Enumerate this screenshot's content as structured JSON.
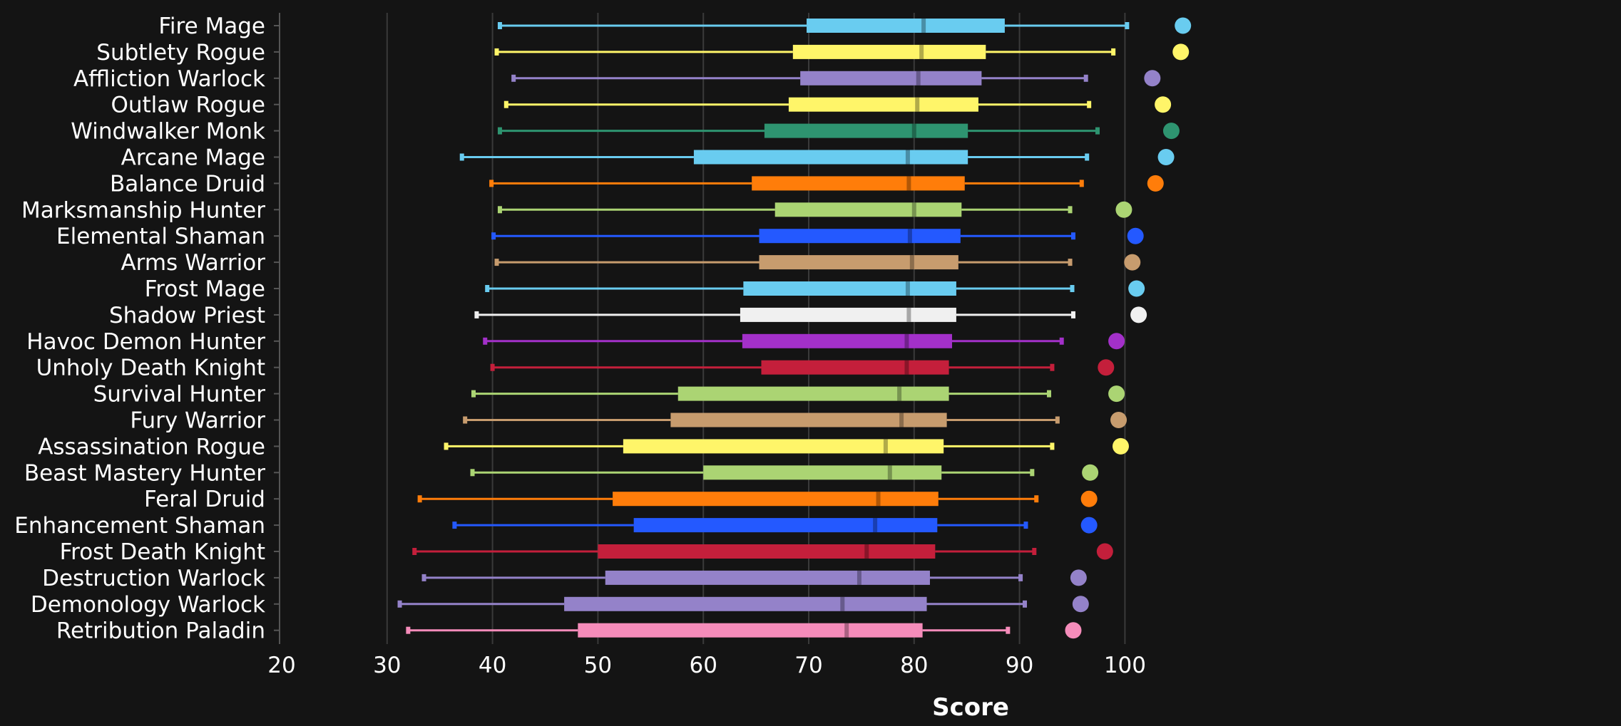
{
  "chart_data": {
    "type": "box",
    "xlabel": "Score",
    "xlim": [
      20,
      106
    ],
    "xticks": [
      20,
      30,
      40,
      50,
      60,
      70,
      80,
      90,
      100
    ],
    "grid": true,
    "orientation": "horizontal",
    "categories": [
      {
        "name": "Fire Mage",
        "color": "#69ccf0",
        "min": 40.7,
        "q1": 69.8,
        "median": 80.9,
        "q3": 88.6,
        "max": 100.2,
        "top": 105.5
      },
      {
        "name": "Subtlety Rogue",
        "color": "#fff569",
        "min": 40.4,
        "q1": 68.5,
        "median": 80.7,
        "q3": 86.8,
        "max": 98.9,
        "top": 105.3
      },
      {
        "name": "Affliction Warlock",
        "color": "#9482c9",
        "min": 42.0,
        "q1": 69.2,
        "median": 80.4,
        "q3": 86.4,
        "max": 96.3,
        "top": 102.6
      },
      {
        "name": "Outlaw Rogue",
        "color": "#fff569",
        "min": 41.3,
        "q1": 68.1,
        "median": 80.3,
        "q3": 86.1,
        "max": 96.6,
        "top": 103.6
      },
      {
        "name": "Windwalker Monk",
        "color": "#2e9470",
        "min": 40.7,
        "q1": 65.8,
        "median": 80.0,
        "q3": 85.1,
        "max": 97.4,
        "top": 104.4
      },
      {
        "name": "Arcane Mage",
        "color": "#69ccf0",
        "min": 37.1,
        "q1": 59.1,
        "median": 79.4,
        "q3": 85.1,
        "max": 96.4,
        "top": 103.9
      },
      {
        "name": "Balance Druid",
        "color": "#ff7d0a",
        "min": 39.9,
        "q1": 64.6,
        "median": 79.5,
        "q3": 84.8,
        "max": 95.9,
        "top": 102.9
      },
      {
        "name": "Marksmanship Hunter",
        "color": "#abd473",
        "min": 40.7,
        "q1": 66.8,
        "median": 80.0,
        "q3": 84.5,
        "max": 94.8,
        "top": 99.9
      },
      {
        "name": "Elemental Shaman",
        "color": "#2459ff",
        "min": 40.1,
        "q1": 65.3,
        "median": 79.6,
        "q3": 84.4,
        "max": 95.1,
        "top": 101.0
      },
      {
        "name": "Arms Warrior",
        "color": "#c79c6e",
        "min": 40.4,
        "q1": 65.3,
        "median": 79.8,
        "q3": 84.2,
        "max": 94.8,
        "top": 100.7
      },
      {
        "name": "Frost Mage",
        "color": "#69ccf0",
        "min": 39.5,
        "q1": 63.8,
        "median": 79.4,
        "q3": 84.0,
        "max": 95.0,
        "top": 101.1
      },
      {
        "name": "Shadow Priest",
        "color": "#f0f0f0",
        "min": 38.5,
        "q1": 63.5,
        "median": 79.5,
        "q3": 84.0,
        "max": 95.1,
        "top": 101.3
      },
      {
        "name": "Havoc Demon Hunter",
        "color": "#a330c9",
        "min": 39.3,
        "q1": 63.7,
        "median": 79.3,
        "q3": 83.6,
        "max": 94.0,
        "top": 99.2
      },
      {
        "name": "Unholy Death Knight",
        "color": "#c41f3b",
        "min": 40.0,
        "q1": 65.5,
        "median": 79.3,
        "q3": 83.3,
        "max": 93.1,
        "top": 98.2
      },
      {
        "name": "Survival Hunter",
        "color": "#abd473",
        "min": 38.2,
        "q1": 57.6,
        "median": 78.6,
        "q3": 83.3,
        "max": 92.8,
        "top": 99.2
      },
      {
        "name": "Fury Warrior",
        "color": "#c79c6e",
        "min": 37.4,
        "q1": 56.9,
        "median": 78.8,
        "q3": 83.1,
        "max": 93.6,
        "top": 99.4
      },
      {
        "name": "Assassination Rogue",
        "color": "#fff569",
        "min": 35.6,
        "q1": 52.4,
        "median": 77.3,
        "q3": 82.8,
        "max": 93.1,
        "top": 99.6
      },
      {
        "name": "Beast Mastery Hunter",
        "color": "#abd473",
        "min": 38.1,
        "q1": 60.0,
        "median": 77.7,
        "q3": 82.6,
        "max": 91.2,
        "top": 96.7
      },
      {
        "name": "Feral Druid",
        "color": "#ff7d0a",
        "min": 33.1,
        "q1": 51.4,
        "median": 76.6,
        "q3": 82.3,
        "max": 91.6,
        "top": 96.6
      },
      {
        "name": "Enhancement Shaman",
        "color": "#2459ff",
        "min": 36.4,
        "q1": 53.4,
        "median": 76.3,
        "q3": 82.2,
        "max": 90.6,
        "top": 96.6
      },
      {
        "name": "Frost Death Knight",
        "color": "#c41f3b",
        "min": 32.6,
        "q1": 50.0,
        "median": 75.5,
        "q3": 82.0,
        "max": 91.4,
        "top": 98.1
      },
      {
        "name": "Destruction Warlock",
        "color": "#9482c9",
        "min": 33.5,
        "q1": 50.7,
        "median": 74.8,
        "q3": 81.5,
        "max": 90.1,
        "top": 95.6
      },
      {
        "name": "Demonology Warlock",
        "color": "#9482c9",
        "min": 31.2,
        "q1": 46.8,
        "median": 73.2,
        "q3": 81.2,
        "max": 90.5,
        "top": 95.8
      },
      {
        "name": "Retribution Paladin",
        "color": "#f58cba",
        "min": 32.0,
        "q1": 48.1,
        "median": 73.6,
        "q3": 80.8,
        "max": 88.9,
        "top": 95.1
      }
    ]
  }
}
